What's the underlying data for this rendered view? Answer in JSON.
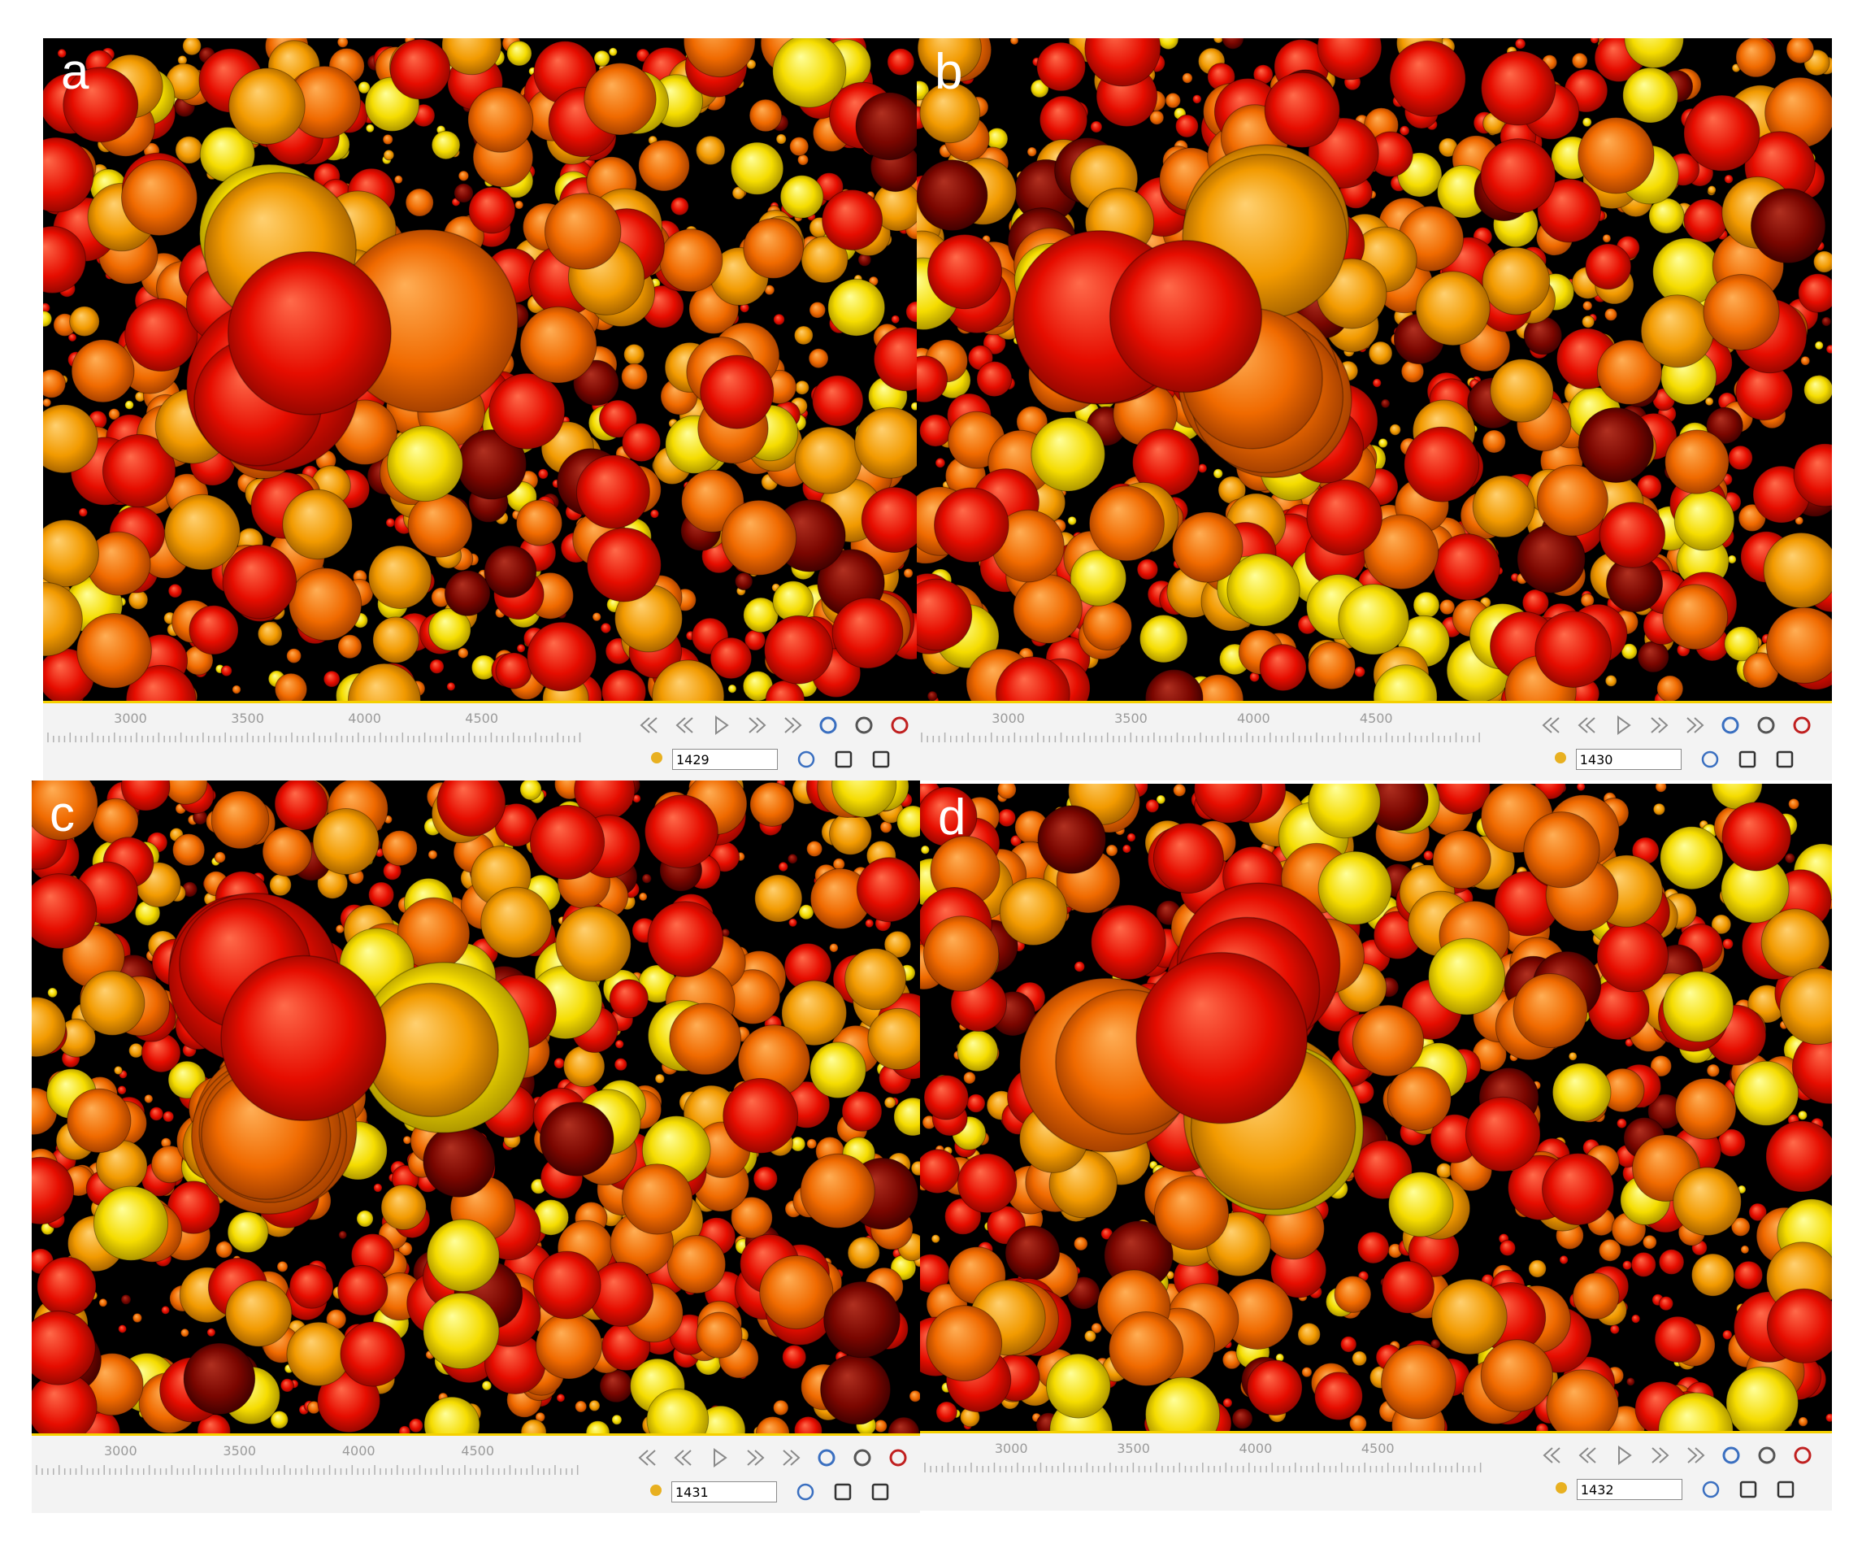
{
  "panels": [
    {
      "label": "a",
      "ticks": [
        "3000",
        "3500",
        "4000",
        "4500"
      ],
      "frame": "1429"
    },
    {
      "label": "b",
      "ticks": [
        "3000",
        "3500",
        "4000",
        "4500"
      ],
      "frame": "1430"
    },
    {
      "label": "c",
      "ticks": [
        "3000",
        "3500",
        "4000",
        "4500"
      ],
      "frame": "1431"
    },
    {
      "label": "d",
      "ticks": [
        "3000",
        "3500",
        "4000",
        "4500"
      ],
      "frame": "1432"
    }
  ]
}
